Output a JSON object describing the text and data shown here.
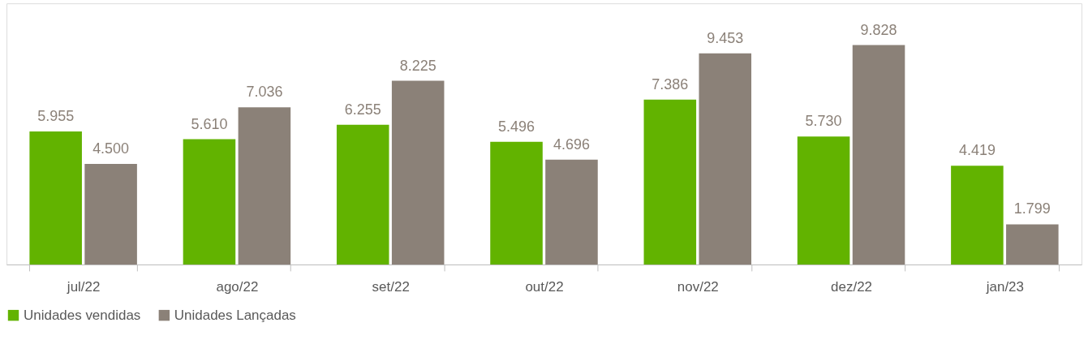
{
  "chart_data": {
    "type": "bar",
    "categories": [
      "jul/22",
      "ago/22",
      "set/22",
      "out/22",
      "nov/22",
      "dez/22",
      "jan/23"
    ],
    "series": [
      {
        "name": "Unidades vendidas",
        "color": "#62b300",
        "values": [
          5955,
          5610,
          6255,
          5496,
          7386,
          5730,
          4419
        ],
        "value_labels": [
          "5.955",
          "5.610",
          "6.255",
          "5.496",
          "7.386",
          "5.730",
          "4.419"
        ]
      },
      {
        "name": "Unidades Lançadas",
        "color": "#8b8178",
        "values": [
          4500,
          7036,
          8225,
          4696,
          9453,
          9828,
          1799
        ],
        "value_labels": [
          "4.500",
          "7.036",
          "8.225",
          "4.696",
          "9.453",
          "9.828",
          "1.799"
        ]
      }
    ],
    "legend": "bottom",
    "grid": false
  }
}
